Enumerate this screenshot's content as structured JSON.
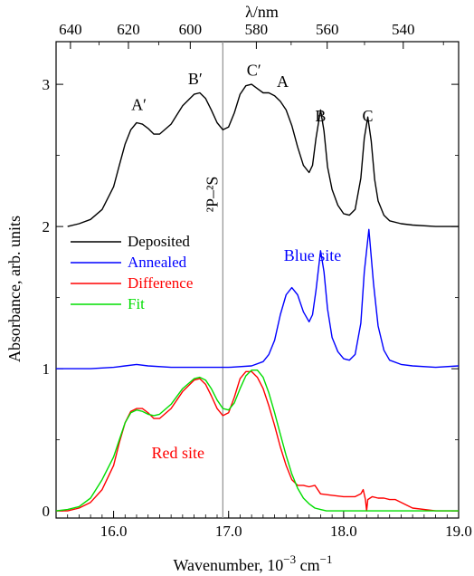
{
  "chart_data": {
    "type": "line",
    "xlabel": "Wavenumber, 10",
    "xlabel_exp": "−3",
    "xlabel_unit": " cm",
    "xlabel_unit_exp": "−1",
    "ylabel": "Absorbance, arb. units",
    "top_label": "λ/nm",
    "xlim": [
      15.5,
      19.0
    ],
    "ylim": [
      -0.05,
      3.3
    ],
    "x_ticks": [
      "16.0",
      "17.0",
      "18.0",
      "19.0"
    ],
    "y_ticks": [
      "0",
      "1",
      "2",
      "3"
    ],
    "top_ticks": [
      640,
      620,
      600,
      580,
      560,
      540
    ],
    "top_ticks_text": [
      "640",
      "620",
      "600",
      "580",
      "560",
      "540"
    ],
    "vertical_line": {
      "x": 16.95,
      "label": "²P–²S",
      "color": "#999999"
    },
    "annotations": [
      {
        "text": "A′",
        "x": 16.22,
        "y": 2.82
      },
      {
        "text": "B′",
        "x": 16.71,
        "y": 3.0
      },
      {
        "text": "C′",
        "x": 17.22,
        "y": 3.06
      },
      {
        "text": "A",
        "x": 17.47,
        "y": 2.98
      },
      {
        "text": "B",
        "x": 17.8,
        "y": 2.74
      },
      {
        "text": "C",
        "x": 18.21,
        "y": 2.74
      }
    ],
    "site_labels": [
      {
        "text": "Blue site",
        "x": 17.48,
        "y": 1.76,
        "color": "#0000ff"
      },
      {
        "text": "Red site",
        "x": 16.33,
        "y": 0.37,
        "color": "#ff0000"
      }
    ],
    "legend_position": "middle-left",
    "series": [
      {
        "name": "Deposited",
        "color": "#000000",
        "offset": 2.0,
        "x": [
          15.6,
          15.7,
          15.8,
          15.9,
          16.0,
          16.05,
          16.1,
          16.15,
          16.2,
          16.25,
          16.3,
          16.35,
          16.4,
          16.5,
          16.6,
          16.7,
          16.75,
          16.8,
          16.85,
          16.9,
          16.95,
          17.0,
          17.05,
          17.1,
          17.15,
          17.2,
          17.25,
          17.3,
          17.35,
          17.4,
          17.45,
          17.5,
          17.55,
          17.6,
          17.65,
          17.7,
          17.73,
          17.76,
          17.8,
          17.83,
          17.86,
          17.9,
          17.95,
          18.0,
          18.05,
          18.1,
          18.15,
          18.18,
          18.21,
          18.24,
          18.27,
          18.3,
          18.35,
          18.4,
          18.5,
          18.6,
          18.8,
          19.0
        ],
        "y": [
          0.0,
          0.02,
          0.05,
          0.12,
          0.28,
          0.43,
          0.58,
          0.68,
          0.73,
          0.72,
          0.69,
          0.65,
          0.65,
          0.72,
          0.85,
          0.93,
          0.94,
          0.9,
          0.82,
          0.73,
          0.68,
          0.7,
          0.8,
          0.93,
          0.99,
          1.0,
          0.97,
          0.94,
          0.94,
          0.92,
          0.88,
          0.82,
          0.71,
          0.56,
          0.43,
          0.38,
          0.43,
          0.62,
          0.82,
          0.67,
          0.42,
          0.26,
          0.15,
          0.09,
          0.08,
          0.12,
          0.34,
          0.62,
          0.77,
          0.6,
          0.33,
          0.18,
          0.08,
          0.04,
          0.02,
          0.01,
          0.0,
          0.0
        ]
      },
      {
        "name": "Annealed",
        "color": "#0000ff",
        "offset": 1.0,
        "x": [
          15.5,
          15.8,
          16.0,
          16.1,
          16.2,
          16.3,
          16.5,
          16.8,
          17.0,
          17.2,
          17.3,
          17.35,
          17.4,
          17.45,
          17.5,
          17.55,
          17.6,
          17.65,
          17.7,
          17.73,
          17.76,
          17.8,
          17.83,
          17.86,
          17.9,
          17.95,
          18.0,
          18.05,
          18.1,
          18.15,
          18.18,
          18.22,
          18.26,
          18.3,
          18.35,
          18.4,
          18.5,
          18.6,
          18.8,
          19.0
        ],
        "y": [
          0.0,
          0.0,
          0.01,
          0.02,
          0.03,
          0.02,
          0.01,
          0.01,
          0.01,
          0.02,
          0.05,
          0.1,
          0.2,
          0.38,
          0.52,
          0.57,
          0.52,
          0.4,
          0.33,
          0.38,
          0.55,
          0.83,
          0.68,
          0.42,
          0.22,
          0.12,
          0.07,
          0.06,
          0.1,
          0.32,
          0.68,
          0.98,
          0.6,
          0.3,
          0.13,
          0.06,
          0.03,
          0.02,
          0.01,
          0.02
        ]
      },
      {
        "name": "Difference",
        "color": "#ff0000",
        "offset": 0.0,
        "x": [
          15.5,
          15.6,
          15.7,
          15.8,
          15.9,
          16.0,
          16.05,
          16.1,
          16.15,
          16.2,
          16.25,
          16.3,
          16.35,
          16.4,
          16.5,
          16.6,
          16.7,
          16.75,
          16.8,
          16.85,
          16.9,
          16.95,
          17.0,
          17.05,
          17.1,
          17.15,
          17.2,
          17.25,
          17.3,
          17.35,
          17.4,
          17.45,
          17.5,
          17.55,
          17.6,
          17.65,
          17.7,
          17.75,
          17.8,
          17.9,
          18.0,
          18.1,
          18.15,
          18.17,
          18.19,
          18.2,
          18.21,
          18.25,
          18.3,
          18.35,
          18.4,
          18.45,
          18.5,
          18.6,
          18.8,
          19.0
        ],
        "y": [
          0.0,
          0.0,
          0.02,
          0.06,
          0.15,
          0.32,
          0.48,
          0.62,
          0.7,
          0.72,
          0.72,
          0.69,
          0.65,
          0.65,
          0.72,
          0.84,
          0.92,
          0.93,
          0.89,
          0.81,
          0.72,
          0.67,
          0.69,
          0.8,
          0.93,
          0.98,
          0.98,
          0.94,
          0.86,
          0.74,
          0.6,
          0.45,
          0.32,
          0.22,
          0.18,
          0.18,
          0.17,
          0.18,
          0.12,
          0.11,
          0.1,
          0.1,
          0.12,
          0.15,
          0.08,
          0.0,
          0.08,
          0.1,
          0.09,
          0.09,
          0.08,
          0.08,
          0.06,
          0.02,
          0.0,
          0.0
        ]
      },
      {
        "name": "Fit",
        "color": "#00dd00",
        "offset": 0.0,
        "x": [
          15.5,
          15.6,
          15.7,
          15.8,
          15.9,
          16.0,
          16.05,
          16.1,
          16.15,
          16.2,
          16.25,
          16.3,
          16.35,
          16.4,
          16.5,
          16.6,
          16.7,
          16.75,
          16.8,
          16.85,
          16.9,
          16.95,
          17.0,
          17.05,
          17.1,
          17.15,
          17.2,
          17.25,
          17.3,
          17.35,
          17.4,
          17.45,
          17.5,
          17.55,
          17.6,
          17.65,
          17.7,
          17.75,
          17.8,
          17.85,
          17.9,
          18.0,
          18.1,
          18.2,
          18.4,
          18.6,
          19.0
        ],
        "y": [
          0.0,
          0.01,
          0.03,
          0.09,
          0.22,
          0.38,
          0.5,
          0.62,
          0.69,
          0.71,
          0.7,
          0.68,
          0.67,
          0.68,
          0.75,
          0.86,
          0.93,
          0.94,
          0.92,
          0.86,
          0.78,
          0.72,
          0.71,
          0.76,
          0.86,
          0.95,
          0.99,
          0.99,
          0.94,
          0.83,
          0.69,
          0.54,
          0.39,
          0.26,
          0.16,
          0.09,
          0.05,
          0.02,
          0.01,
          0.0,
          0.0,
          0.0,
          0.0,
          0.0,
          0.0,
          0.0,
          0.0
        ]
      }
    ]
  }
}
